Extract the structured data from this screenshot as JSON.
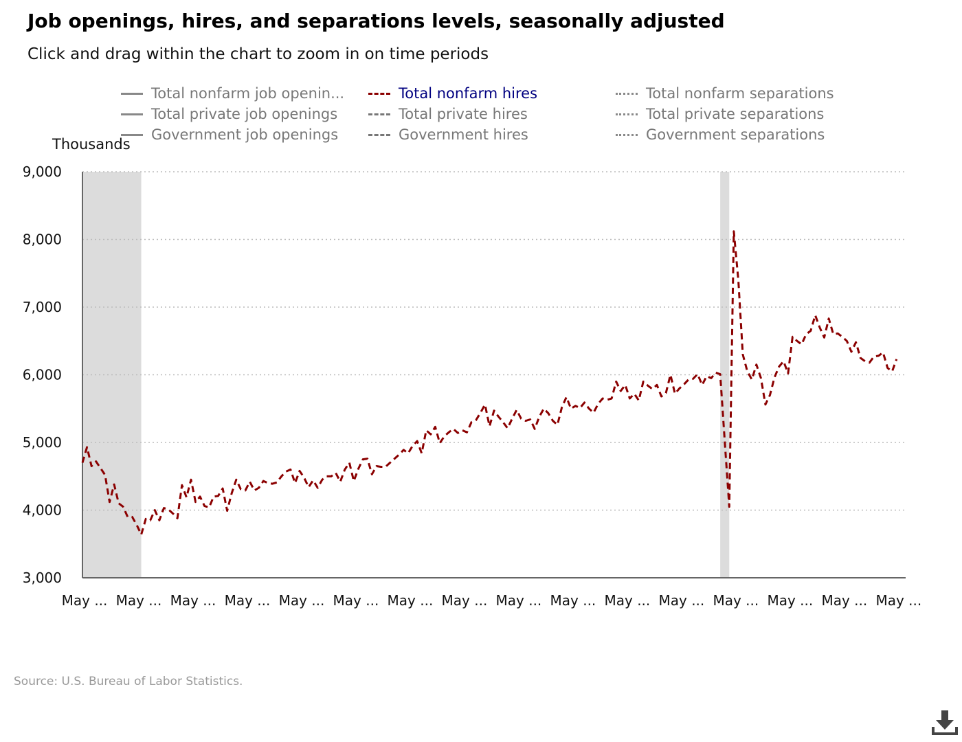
{
  "title": "Job openings, hires, and separations levels, seasonally adjusted",
  "subtitle": "Click and drag within the chart to zoom in on time periods",
  "units_label": "Thousands",
  "source": "Source: U.S. Bureau of Labor Statistics.",
  "legend": [
    {
      "label": "Total nonfarm job openin...",
      "style": "solid",
      "active": false
    },
    {
      "label": "Total nonfarm hires",
      "style": "dashed",
      "active": true
    },
    {
      "label": "Total nonfarm separations",
      "style": "dotted",
      "active": false
    },
    {
      "label": "Total private job openings",
      "style": "solid",
      "active": false
    },
    {
      "label": "Total private hires",
      "style": "dashed",
      "active": false
    },
    {
      "label": "Total private separations",
      "style": "dotted",
      "active": false
    },
    {
      "label": "Government job openings",
      "style": "solid",
      "active": false
    },
    {
      "label": "Government hires",
      "style": "dashed",
      "active": false
    },
    {
      "label": "Government separations",
      "style": "dotted",
      "active": false
    }
  ],
  "colors": {
    "series": "#8b0000",
    "recession": "#dcdcdc",
    "grid": "#bbbbbb",
    "axis": "#666666",
    "active_legend": "#000080"
  },
  "icons": {
    "download": "download-icon"
  },
  "chart_data": {
    "type": "line",
    "title": "Job openings, hires, and separations levels, seasonally adjusted",
    "ylabel": "Thousands",
    "ylim": [
      3000,
      9000
    ],
    "yticks": [
      3000,
      4000,
      5000,
      6000,
      7000,
      8000,
      9000
    ],
    "ytick_labels": [
      "3,000",
      "4,000",
      "5,000",
      "6,000",
      "7,000",
      "8,000",
      "9,000"
    ],
    "xlim": [
      "2008-05",
      "2023-07"
    ],
    "xtick_labels": [
      "May ...",
      "May ...",
      "May ...",
      "May ...",
      "May ...",
      "May ...",
      "May ...",
      "May ...",
      "May ...",
      "May ...",
      "May ...",
      "May ...",
      "May ...",
      "May ...",
      "May ...",
      "May ..."
    ],
    "xtick_dates": [
      "2008-05",
      "2009-05",
      "2010-05",
      "2011-05",
      "2012-05",
      "2013-05",
      "2014-05",
      "2015-05",
      "2016-05",
      "2017-05",
      "2018-05",
      "2019-05",
      "2020-05",
      "2021-05",
      "2022-05",
      "2023-05"
    ],
    "grid": true,
    "legend_position": "top",
    "recessions": [
      {
        "start": "2008-05",
        "end": "2009-06"
      },
      {
        "start": "2020-02",
        "end": "2020-04"
      }
    ],
    "series": [
      {
        "name": "Total nonfarm hires",
        "style": "dashed",
        "start": "2008-05",
        "values": [
          4700,
          4930,
          4650,
          4720,
          4620,
          4520,
          4120,
          4380,
          4100,
          4050,
          3900,
          3900,
          3780,
          3640,
          3870,
          3850,
          4000,
          3850,
          4030,
          4010,
          3950,
          3880,
          4370,
          4190,
          4450,
          4120,
          4200,
          4060,
          4040,
          4200,
          4210,
          4320,
          3990,
          4250,
          4450,
          4310,
          4290,
          4420,
          4290,
          4330,
          4430,
          4400,
          4390,
          4410,
          4500,
          4570,
          4600,
          4400,
          4580,
          4480,
          4340,
          4440,
          4330,
          4450,
          4500,
          4500,
          4550,
          4420,
          4600,
          4700,
          4430,
          4610,
          4750,
          4760,
          4530,
          4650,
          4640,
          4640,
          4700,
          4760,
          4820,
          4890,
          4840,
          4950,
          5020,
          4840,
          5180,
          5120,
          5230,
          4990,
          5090,
          5150,
          5200,
          5140,
          5180,
          5150,
          5300,
          5330,
          5440,
          5560,
          5240,
          5470,
          5380,
          5300,
          5210,
          5350,
          5480,
          5350,
          5320,
          5340,
          5200,
          5380,
          5500,
          5430,
          5320,
          5260,
          5520,
          5670,
          5500,
          5540,
          5510,
          5590,
          5500,
          5440,
          5570,
          5650,
          5630,
          5650,
          5900,
          5760,
          5850,
          5650,
          5720,
          5620,
          5900,
          5840,
          5790,
          5850,
          5680,
          5730,
          6000,
          5720,
          5800,
          5860,
          5930,
          5940,
          6010,
          5850,
          5980,
          5950,
          6030,
          6010,
          5020,
          4050,
          8120,
          7400,
          6300,
          6050,
          5930,
          6150,
          5950,
          5560,
          5700,
          5960,
          6120,
          6200,
          6020,
          6560,
          6500,
          6450,
          6600,
          6650,
          6880,
          6700,
          6550,
          6830,
          6600,
          6610,
          6560,
          6500,
          6340,
          6480,
          6250,
          6200,
          6180,
          6270,
          6280,
          6330,
          6100,
          6050,
          6230
        ]
      }
    ]
  }
}
